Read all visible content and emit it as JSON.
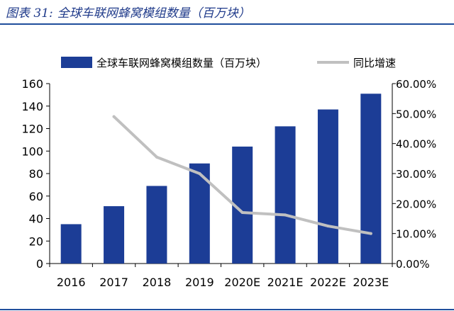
{
  "header": {
    "figure_label": "图表 31:",
    "figure_title": "全球车联网蜂窝模组数量（百万块）"
  },
  "colors": {
    "bar": "#1c3d96",
    "line": "#c0c0c0",
    "title": "#1f3a8a",
    "rule": "#1f4e9c"
  },
  "chart_data": {
    "type": "bar",
    "categories": [
      "2016",
      "2017",
      "2018",
      "2019",
      "2020E",
      "2021E",
      "2022E",
      "2023E"
    ],
    "series": [
      {
        "name": "全球车联网蜂窝模组数量（百万块）",
        "type": "bar",
        "axis": "left",
        "values": [
          35,
          51,
          69,
          89,
          104,
          122,
          137,
          151
        ]
      },
      {
        "name": "同比增速",
        "type": "line",
        "axis": "right",
        "values": [
          null,
          0.49,
          0.355,
          0.3,
          0.17,
          0.162,
          0.125,
          0.1
        ]
      }
    ],
    "ylim_left": [
      0,
      160
    ],
    "yticks_left": [
      "0",
      "20",
      "40",
      "60",
      "80",
      "100",
      "120",
      "140",
      "160"
    ],
    "ylim_right": [
      0,
      0.6
    ],
    "yticks_right": [
      "0.00%",
      "10.00%",
      "20.00%",
      "30.00%",
      "40.00%",
      "50.00%",
      "60.00%"
    ],
    "grid": false,
    "legend_position": "top"
  }
}
